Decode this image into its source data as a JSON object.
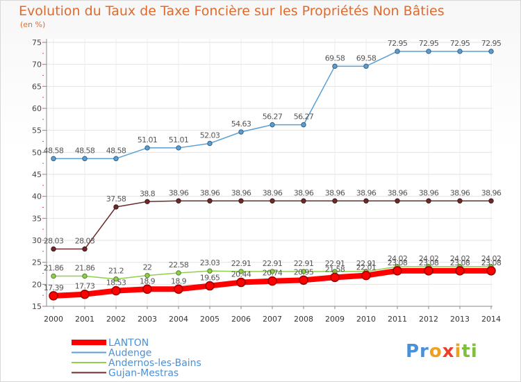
{
  "chart_data": {
    "type": "line",
    "title": "Evolution du Taux de Taxe Foncière sur les Propriétés Non Bâties",
    "ylabel": "(en %)",
    "xlabel": "",
    "ylim": [
      15,
      75
    ],
    "yticks": [
      15,
      20,
      25,
      30,
      35,
      40,
      45,
      50,
      55,
      60,
      65,
      70,
      75
    ],
    "x": [
      "2000",
      "2001",
      "2002",
      "2003",
      "2004",
      "2005",
      "2006",
      "2007",
      "2008",
      "2009",
      "2010",
      "2011",
      "2012",
      "2013",
      "2014"
    ],
    "grid": true,
    "legend_position": "bottom-left",
    "series": [
      {
        "name": "Audenge",
        "color": "#5a9fd4",
        "values": [
          48.58,
          48.58,
          48.58,
          51.01,
          51.01,
          52.03,
          54.63,
          56.27,
          56.27,
          69.58,
          69.58,
          72.95,
          72.95,
          72.95,
          72.95
        ],
        "labels": [
          "48.58",
          "48.58",
          "48.58",
          "51.01",
          "51.01",
          "52.03",
          "54.63",
          "56.27",
          "56.27",
          "69.58",
          "69.58",
          "72.95",
          "72.95",
          "72.95",
          "72.95"
        ]
      },
      {
        "name": "Gujan-Mestras",
        "color": "#6b2b2b",
        "values": [
          28.03,
          28.03,
          37.58,
          38.8,
          38.96,
          38.96,
          38.96,
          38.96,
          38.96,
          38.96,
          38.96,
          38.96,
          38.96,
          38.96,
          38.96
        ],
        "labels": [
          "28.03",
          "28.03",
          "37.58",
          "38.8",
          "38.96",
          "38.96",
          "38.96",
          "38.96",
          "38.96",
          "38.96",
          "38.96",
          "38.96",
          "38.96",
          "38.96",
          "38.96"
        ]
      },
      {
        "name": "Andernos-les-Bains",
        "color": "#8fd04a",
        "values": [
          21.86,
          21.86,
          21.2,
          22,
          22.58,
          23.03,
          22.91,
          22.91,
          22.91,
          22.91,
          22.91,
          24.02,
          24.02,
          24.02,
          24.02
        ],
        "labels": [
          "21.86",
          "21.86",
          "21.2",
          "22",
          "22.58",
          "23.03",
          "22.91",
          "22.91",
          "22.91",
          "22.91",
          "22.91",
          "24.02",
          "24.02",
          "24.02",
          "24.02"
        ]
      },
      {
        "name": "LANTON",
        "color": "#ff0000",
        "values": [
          17.39,
          17.73,
          18.53,
          18.9,
          18.9,
          19.65,
          20.44,
          20.74,
          20.95,
          21.58,
          22.01,
          23.08,
          23.08,
          23.08,
          23.08
        ],
        "labels": [
          "17.39",
          "17.73",
          "18.53",
          "18.9",
          "18.9",
          "19.65",
          "20.44",
          "20.74",
          "20.95",
          "21.58",
          "22.01",
          "23.08",
          "23.08",
          "23.08",
          "23.08"
        ]
      }
    ],
    "legend": [
      "LANTON",
      "Audenge",
      "Andernos-les-Bains",
      "Gujan-Mestras"
    ]
  },
  "logo": {
    "p1": "Pr",
    "p2": "o",
    "p3": "x",
    "p4": "i",
    "p5": "ti"
  }
}
